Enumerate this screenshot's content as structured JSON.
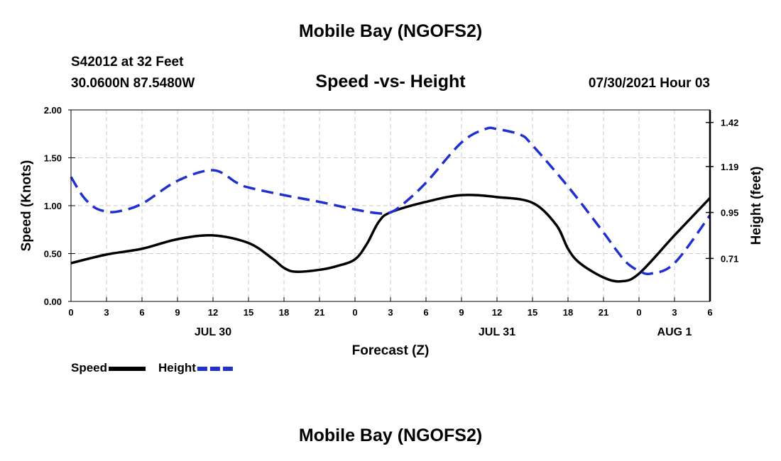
{
  "header": {
    "title": "Mobile Bay (NGOFS2)",
    "station": "S42012 at 32 Feet",
    "coords": "30.0600N  87.5480W",
    "subtitle": "Speed -vs- Height",
    "datetime": "07/30/2021 Hour 03"
  },
  "footer": {
    "title": "Mobile Bay (NGOFS2)"
  },
  "chart_data": {
    "type": "line",
    "title": "Speed -vs- Height",
    "xlabel": "Forecast (Z)",
    "ylabel": "Speed (Knots)",
    "y2label": "Height (feet)",
    "x_unit": "hours since JUL 30 00Z",
    "xlim": [
      0,
      54
    ],
    "ylim": [
      0,
      2.0
    ],
    "y2lim": [
      0.4855,
      1.4855
    ],
    "x_ticks": [
      0,
      3,
      6,
      9,
      12,
      15,
      18,
      21,
      24,
      27,
      30,
      33,
      36,
      39,
      42,
      45,
      48,
      51,
      54
    ],
    "x_tick_labels": [
      "0",
      "3",
      "6",
      "9",
      "12",
      "15",
      "18",
      "21",
      "0",
      "3",
      "6",
      "9",
      "12",
      "15",
      "18",
      "21",
      "0",
      "3",
      "6"
    ],
    "date_labels": [
      {
        "x": 12,
        "label": "JUL 30"
      },
      {
        "x": 36,
        "label": "JUL 31"
      },
      {
        "x": 51,
        "label": "AUG 1"
      }
    ],
    "y_ticks": [
      0,
      0.5,
      1.0,
      1.5,
      2.0
    ],
    "y_tick_labels": [
      "0.00",
      "0.50",
      "1.00",
      "1.50",
      "2.00"
    ],
    "y2_ticks": [
      0.71,
      0.95,
      1.19,
      1.42
    ],
    "y2_tick_labels": [
      "0.71",
      "0.95",
      "1.19",
      "1.42"
    ],
    "grid": true,
    "legend_position": "bottom-left",
    "series": [
      {
        "name": "Speed",
        "axis": "left",
        "color": "#000000",
        "style": "solid",
        "x": [
          0,
          3,
          6,
          9,
          12,
          15,
          17,
          18,
          19,
          21,
          22.5,
          24,
          25,
          26,
          27,
          30,
          33,
          36,
          39,
          41,
          42,
          43,
          45,
          46.5,
          48,
          51,
          54
        ],
        "values": [
          0.4,
          0.49,
          0.55,
          0.65,
          0.69,
          0.61,
          0.45,
          0.35,
          0.31,
          0.33,
          0.37,
          0.44,
          0.6,
          0.83,
          0.93,
          1.04,
          1.11,
          1.09,
          1.03,
          0.8,
          0.55,
          0.4,
          0.25,
          0.21,
          0.29,
          0.69,
          1.08
        ]
      },
      {
        "name": "Height",
        "axis": "right",
        "color": "#1f2fd0",
        "style": "dashed",
        "x": [
          0,
          1,
          2,
          3,
          4,
          6,
          9,
          12,
          14,
          15,
          18,
          21,
          24,
          26,
          27,
          28,
          30,
          33,
          35,
          36,
          38,
          39,
          42,
          45,
          46,
          47,
          48,
          49,
          51,
          54
        ],
        "values": [
          1.1355,
          1.035,
          0.9755,
          0.9555,
          0.9555,
          0.9955,
          1.1155,
          1.1705,
          1.1055,
          1.0805,
          1.0405,
          1.0055,
          0.9655,
          0.9455,
          0.9505,
          0.9905,
          1.1055,
          1.3155,
          1.3855,
          1.3855,
          1.3555,
          1.3005,
          1.0855,
          0.8455,
          0.7605,
          0.6855,
          0.6455,
          0.6305,
          0.6855,
          0.9355
        ]
      }
    ]
  }
}
